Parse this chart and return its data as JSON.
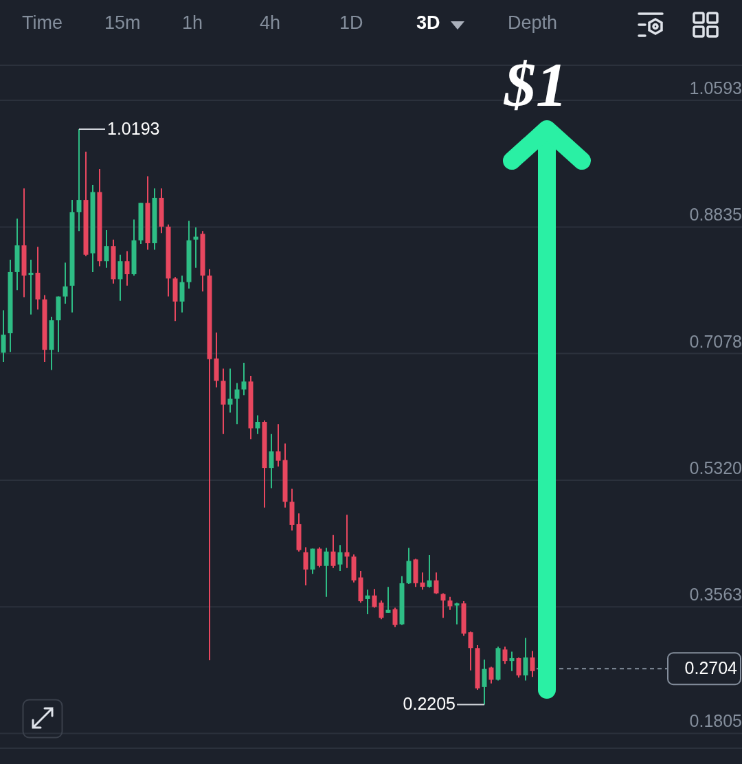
{
  "chart_data": {
    "type": "candlestick",
    "categories": [
      null,
      null,
      null,
      null,
      null,
      null,
      null,
      null,
      null,
      null,
      null,
      null,
      null,
      null,
      null,
      null,
      null,
      null,
      null,
      null,
      null,
      null,
      null,
      null,
      null,
      null,
      null,
      null,
      null,
      null,
      null,
      null,
      null,
      null,
      null,
      null,
      null,
      null,
      null,
      null,
      null,
      null,
      null,
      null,
      null,
      null,
      null,
      null,
      null,
      null,
      null,
      null,
      null,
      null,
      null,
      null,
      null,
      null,
      null,
      null,
      null,
      null,
      null,
      null,
      null,
      null,
      null,
      null,
      null,
      null,
      null,
      null,
      null,
      null,
      null,
      null,
      null,
      null,
      null,
      null,
      null,
      null,
      null,
      null,
      null,
      null,
      null,
      null,
      null,
      null,
      null,
      null,
      null,
      null,
      null,
      null,
      null
    ],
    "ohlc": [
      [
        0.709,
        0.768,
        0.696,
        0.734
      ],
      [
        0.736,
        0.838,
        0.71,
        0.821
      ],
      [
        0.821,
        0.895,
        0.796,
        0.858
      ],
      [
        0.858,
        0.937,
        0.786,
        0.816
      ],
      [
        0.817,
        0.838,
        0.762,
        0.82
      ],
      [
        0.82,
        0.856,
        0.769,
        0.783
      ],
      [
        0.783,
        0.789,
        0.696,
        0.713
      ],
      [
        0.713,
        0.759,
        0.685,
        0.754
      ],
      [
        0.754,
        0.787,
        0.71,
        0.787
      ],
      [
        0.787,
        0.834,
        0.777,
        0.801
      ],
      [
        0.802,
        0.921,
        0.765,
        0.904
      ],
      [
        0.904,
        1.0193,
        0.878,
        0.921
      ],
      [
        0.921,
        0.988,
        0.843,
        0.845
      ],
      [
        0.847,
        0.942,
        0.821,
        0.932
      ],
      [
        0.932,
        0.964,
        0.829,
        0.836
      ],
      [
        0.836,
        0.879,
        0.827,
        0.857
      ],
      [
        0.857,
        0.866,
        0.805,
        0.811
      ],
      [
        0.811,
        0.845,
        0.781,
        0.836
      ],
      [
        0.836,
        0.85,
        0.802,
        0.818
      ],
      [
        0.818,
        0.894,
        0.816,
        0.865
      ],
      [
        0.865,
        0.917,
        0.86,
        0.917
      ],
      [
        0.917,
        0.954,
        0.852,
        0.861
      ],
      [
        0.861,
        0.937,
        0.852,
        0.924
      ],
      [
        0.924,
        0.937,
        0.875,
        0.884
      ],
      [
        0.884,
        0.887,
        0.787,
        0.812
      ],
      [
        0.812,
        0.814,
        0.753,
        0.78
      ],
      [
        0.78,
        0.816,
        0.765,
        0.807
      ],
      [
        0.807,
        0.892,
        0.798,
        0.865
      ],
      [
        0.866,
        0.883,
        0.827,
        0.87
      ],
      [
        0.874,
        0.878,
        0.794,
        0.816
      ],
      [
        0.816,
        0.825,
        0.282,
        0.7
      ],
      [
        0.701,
        0.737,
        0.661,
        0.67
      ],
      [
        0.67,
        0.687,
        0.596,
        0.637
      ],
      [
        0.637,
        0.687,
        0.626,
        0.645
      ],
      [
        0.645,
        0.667,
        0.61,
        0.658
      ],
      [
        0.658,
        0.695,
        0.65,
        0.669
      ],
      [
        0.669,
        0.677,
        0.589,
        0.604
      ],
      [
        0.604,
        0.622,
        0.596,
        0.613
      ],
      [
        0.613,
        0.615,
        0.494,
        0.549
      ],
      [
        0.549,
        0.596,
        0.521,
        0.572
      ],
      [
        0.572,
        0.61,
        0.551,
        0.559
      ],
      [
        0.56,
        0.583,
        0.494,
        0.502
      ],
      [
        0.502,
        0.52,
        0.462,
        0.47
      ],
      [
        0.471,
        0.486,
        0.433,
        0.435
      ],
      [
        0.432,
        0.439,
        0.386,
        0.408
      ],
      [
        0.408,
        0.437,
        0.402,
        0.437
      ],
      [
        0.437,
        0.439,
        0.411,
        0.413
      ],
      [
        0.413,
        0.438,
        0.37,
        0.433
      ],
      [
        0.433,
        0.456,
        0.41,
        0.413
      ],
      [
        0.415,
        0.442,
        0.406,
        0.432
      ],
      [
        0.432,
        0.484,
        0.41,
        0.426
      ],
      [
        0.426,
        0.429,
        0.39,
        0.393
      ],
      [
        0.397,
        0.406,
        0.362,
        0.364
      ],
      [
        0.367,
        0.38,
        0.346,
        0.372
      ],
      [
        0.372,
        0.381,
        0.355,
        0.356
      ],
      [
        0.362,
        0.365,
        0.339,
        0.341
      ],
      [
        0.348,
        0.384,
        0.348,
        0.352
      ],
      [
        0.353,
        0.355,
        0.328,
        0.331
      ],
      [
        0.332,
        0.399,
        0.331,
        0.389
      ],
      [
        0.389,
        0.438,
        0.388,
        0.42
      ],
      [
        0.422,
        0.423,
        0.384,
        0.389
      ],
      [
        0.39,
        0.404,
        0.38,
        0.384
      ],
      [
        0.384,
        0.428,
        0.383,
        0.393
      ],
      [
        0.393,
        0.404,
        0.374,
        0.375
      ],
      [
        0.374,
        0.375,
        0.341,
        0.365
      ],
      [
        0.365,
        0.37,
        0.352,
        0.357
      ],
      [
        0.358,
        0.362,
        0.332,
        0.361
      ],
      [
        0.361,
        0.364,
        0.316,
        0.319
      ],
      [
        0.321,
        0.322,
        0.268,
        0.299
      ],
      [
        0.299,
        0.303,
        0.241,
        0.243
      ],
      [
        0.245,
        0.283,
        0.2205,
        0.27
      ],
      [
        0.272,
        0.273,
        0.25,
        0.255
      ],
      [
        0.255,
        0.301,
        0.254,
        0.299
      ],
      [
        0.297,
        0.301,
        0.277,
        0.281
      ],
      [
        0.281,
        0.294,
        0.267,
        0.285
      ],
      [
        0.285,
        0.286,
        0.258,
        0.261
      ],
      [
        0.261,
        0.313,
        0.254,
        0.286
      ],
      [
        0.286,
        0.295,
        0.259,
        0.267
      ],
      null,
      null,
      null,
      null,
      null,
      null,
      null,
      null,
      null,
      null,
      null,
      null,
      null,
      null,
      null,
      null,
      null,
      null,
      null
    ],
    "colors": [
      "#2ebd85",
      "#2ebd85",
      "#2ebd85",
      "#e8475f",
      "#2ebd85",
      "#e8475f",
      "#e8475f",
      "#2ebd85",
      "#2ebd85",
      "#2ebd85",
      "#2ebd85",
      "#2ebd85",
      "#e8475f",
      "#2ebd85",
      "#e8475f",
      "#2ebd85",
      "#e8475f",
      "#2ebd85",
      "#e8475f",
      "#2ebd85",
      "#2ebd85",
      "#e8475f",
      "#2ebd85",
      "#e8475f",
      "#e8475f",
      "#e8475f",
      "#2ebd85",
      "#2ebd85",
      "#2ebd85",
      "#e8475f",
      "#e8475f",
      "#e8475f",
      "#e8475f",
      "#2ebd85",
      "#2ebd85",
      "#2ebd85",
      "#e8475f",
      "#2ebd85",
      "#e8475f",
      "#2ebd85",
      "#e8475f",
      "#e8475f",
      "#e8475f",
      "#e8475f",
      "#e8475f",
      "#2ebd85",
      "#e8475f",
      "#2ebd85",
      "#e8475f",
      "#2ebd85",
      "#e8475f",
      "#e8475f",
      "#e8475f",
      "#2ebd85",
      "#e8475f",
      "#e8475f",
      "#2ebd85",
      "#e8475f",
      "#2ebd85",
      "#2ebd85",
      "#e8475f",
      "#e8475f",
      "#2ebd85",
      "#e8475f",
      "#e8475f",
      "#e8475f",
      "#2ebd85",
      "#e8475f",
      "#e8475f",
      "#e8475f",
      "#2ebd85",
      "#e8475f",
      "#2ebd85",
      "#e8475f",
      "#2ebd85",
      "#e8475f",
      "#2ebd85",
      "#e8475f",
      null,
      null,
      null,
      null,
      null,
      null,
      null,
      null,
      null,
      null,
      null,
      null,
      null,
      null,
      null,
      null,
      null,
      null,
      null
    ],
    "ylim": [
      0.16,
      1.108
    ],
    "yticks": [
      1.0593,
      0.8835,
      0.7078,
      {
        "value": 0.532,
        "label": "0.5320"
      },
      0.3563,
      0.1805
    ],
    "ref_lines": [
      {
        "axis": "y",
        "value": 0.2704,
        "label": "0.2704",
        "color": "#848e9c",
        "line_style": "dashed"
      }
    ],
    "annotations": [
      "Time",
      "15m",
      "1h",
      "4h",
      "1D",
      "3D",
      "Depth",
      "1.0193",
      "0.2205",
      "$1"
    ],
    "grid": "y",
    "legend": false,
    "tick_labels": "y"
  }
}
